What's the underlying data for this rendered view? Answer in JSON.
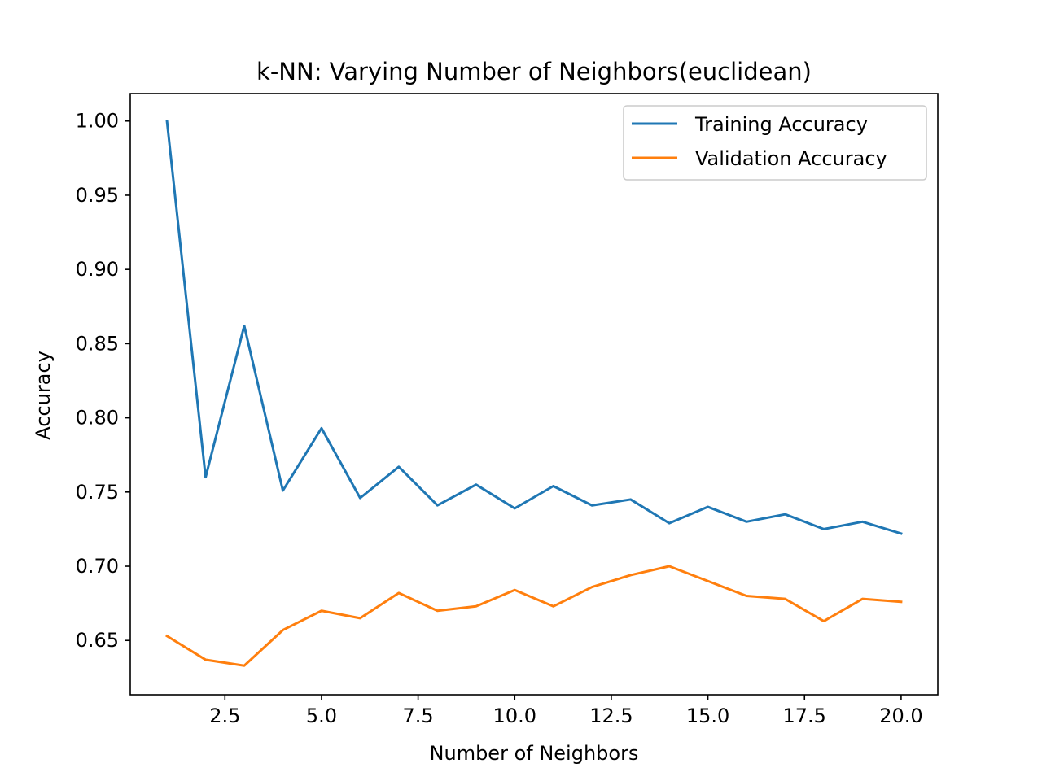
{
  "chart_data": {
    "type": "line",
    "title": "k-NN: Varying Number of Neighbors(euclidean)",
    "xlabel": "Number of Neighbors",
    "ylabel": "Accuracy",
    "xlim": [
      0.05,
      20.95
    ],
    "ylim": [
      0.6134,
      1.0185
    ],
    "xticks": [
      2.5,
      5.0,
      7.5,
      10.0,
      12.5,
      15.0,
      17.5,
      20.0
    ],
    "xtick_labels": [
      "2.5",
      "5.0",
      "7.5",
      "10.0",
      "12.5",
      "15.0",
      "17.5",
      "20.0"
    ],
    "yticks": [
      0.65,
      0.7,
      0.75,
      0.8,
      0.85,
      0.9,
      0.95,
      1.0
    ],
    "ytick_labels": [
      "0.65",
      "0.70",
      "0.75",
      "0.80",
      "0.85",
      "0.90",
      "0.95",
      "1.00"
    ],
    "grid": false,
    "legend_position": "top-right",
    "x": [
      1,
      2,
      3,
      4,
      5,
      6,
      7,
      8,
      9,
      10,
      11,
      12,
      13,
      14,
      15,
      16,
      17,
      18,
      19,
      20
    ],
    "series": [
      {
        "name": "Training Accuracy",
        "color": "#1f77b4",
        "values": [
          1.0,
          0.76,
          0.862,
          0.751,
          0.793,
          0.746,
          0.767,
          0.741,
          0.755,
          0.739,
          0.754,
          0.741,
          0.745,
          0.729,
          0.74,
          0.73,
          0.735,
          0.725,
          0.73,
          0.722
        ]
      },
      {
        "name": "Validation Accuracy",
        "color": "#ff7f0e",
        "values": [
          0.653,
          0.637,
          0.633,
          0.657,
          0.67,
          0.665,
          0.682,
          0.67,
          0.673,
          0.684,
          0.673,
          0.686,
          0.694,
          0.7,
          0.69,
          0.68,
          0.678,
          0.663,
          0.678,
          0.676
        ]
      }
    ]
  }
}
